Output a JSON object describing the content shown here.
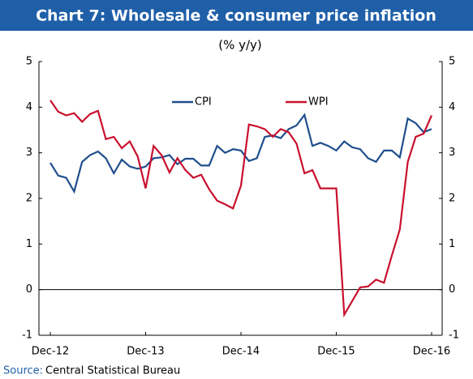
{
  "chart_data": {
    "type": "line",
    "title": "Chart 7: Wholesale & consumer price inflation",
    "subtitle": "(% y/y)",
    "source_label": "Source:",
    "source": "Central Statistical Bureau",
    "categories": [
      "Dec-12",
      null,
      null,
      null,
      null,
      null,
      null,
      null,
      null,
      null,
      null,
      null,
      "Dec-13",
      null,
      null,
      null,
      null,
      null,
      null,
      null,
      null,
      null,
      null,
      null,
      "Dec-14",
      null,
      null,
      null,
      null,
      null,
      null,
      null,
      null,
      null,
      null,
      null,
      "Dec-15",
      null,
      null,
      null,
      null,
      null,
      null,
      null,
      null,
      null,
      null,
      null,
      "Dec-16"
    ],
    "series": [
      {
        "name": "CPI",
        "color": "#1f4e8c",
        "values": [
          2.78,
          2.5,
          2.45,
          2.15,
          2.8,
          2.95,
          3.03,
          2.88,
          2.55,
          2.85,
          2.7,
          2.65,
          2.7,
          2.88,
          2.9,
          2.95,
          2.75,
          2.87,
          2.87,
          2.72,
          2.72,
          3.15,
          3.0,
          3.08,
          3.05,
          2.82,
          2.88,
          3.35,
          3.38,
          3.32,
          3.52,
          3.6,
          3.83,
          3.15,
          3.22,
          3.15,
          3.05,
          3.25,
          3.12,
          3.08,
          2.88,
          2.8,
          3.05,
          3.05,
          2.9,
          3.75,
          3.65,
          3.45,
          3.52
        ]
      },
      {
        "name": "WPI",
        "color": "#c8102e",
        "values": [
          4.15,
          3.9,
          3.82,
          3.87,
          3.68,
          3.85,
          3.92,
          3.3,
          3.35,
          3.1,
          3.25,
          2.92,
          2.22,
          3.15,
          2.95,
          2.57,
          2.88,
          2.62,
          2.45,
          2.52,
          2.2,
          1.95,
          1.87,
          1.78,
          2.28,
          3.62,
          3.58,
          3.52,
          3.35,
          3.52,
          3.45,
          3.2,
          2.55,
          2.62,
          2.22,
          2.22,
          2.22,
          -0.55,
          -0.25,
          0.05,
          0.07,
          0.22,
          0.15,
          0.75,
          1.32,
          2.8,
          3.35,
          3.42,
          3.82
        ]
      }
    ],
    "ylim": [
      -1,
      5
    ],
    "yticks": [
      -1,
      0,
      1,
      2,
      3,
      4,
      5
    ]
  }
}
